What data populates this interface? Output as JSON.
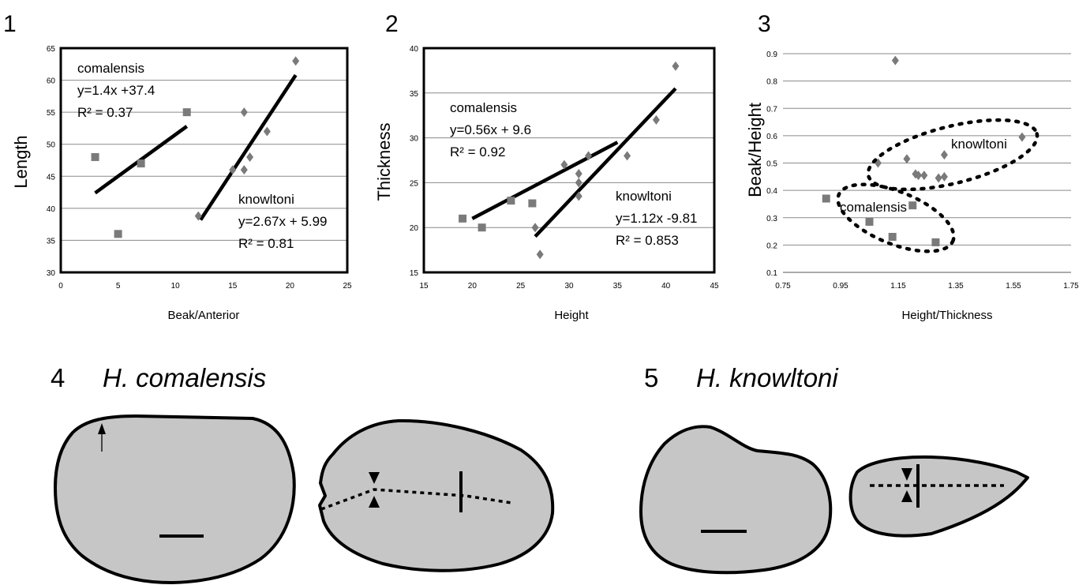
{
  "chart_data": [
    {
      "type": "scatter",
      "panel": "1",
      "xlabel": "Beak/Anterior",
      "ylabel": "Length",
      "xlim": [
        0,
        25
      ],
      "ylim": [
        30,
        65
      ],
      "xticks": [
        "0",
        "5",
        "10",
        "15",
        "20",
        "25"
      ],
      "yticks": [
        "30",
        "35",
        "40",
        "45",
        "50",
        "55",
        "60",
        "65"
      ],
      "grid": true,
      "series": [
        {
          "marker": "square",
          "points": [
            [
              3,
              48
            ],
            [
              5,
              36
            ],
            [
              7,
              47
            ],
            [
              11,
              55
            ]
          ]
        },
        {
          "marker": "diamond",
          "points": [
            [
              12,
              38.8
            ],
            [
              15,
              46
            ],
            [
              16,
              46
            ],
            [
              16,
              55
            ],
            [
              16.5,
              48
            ],
            [
              18,
              52
            ],
            [
              20.5,
              63
            ]
          ]
        }
      ],
      "trendlines": [
        {
          "x": [
            3,
            11
          ],
          "y": [
            42.4,
            52.8
          ]
        },
        {
          "x": [
            12.2,
            20.5
          ],
          "y": [
            38.2,
            60.8
          ]
        }
      ],
      "annotations": [
        {
          "lines": [
            "comalensis",
            "y=1.4x +37.4",
            "R² = 0.37"
          ]
        },
        {
          "lines": [
            "knowltoni",
            "y=2.67x + 5.99",
            "R² = 0.81"
          ]
        }
      ]
    },
    {
      "type": "scatter",
      "panel": "2",
      "xlabel": "Height",
      "ylabel": "Thickness",
      "xlim": [
        15,
        45
      ],
      "ylim": [
        15,
        40
      ],
      "xticks": [
        "15",
        "20",
        "25",
        "30",
        "35",
        "40",
        "45"
      ],
      "yticks": [
        "15",
        "20",
        "25",
        "30",
        "35",
        "40"
      ],
      "grid": true,
      "series": [
        {
          "marker": "square",
          "points": [
            [
              19,
              21
            ],
            [
              21,
              20
            ],
            [
              24,
              23
            ],
            [
              26.2,
              22.7
            ]
          ]
        },
        {
          "marker": "diamond",
          "points": [
            [
              26.5,
              20
            ],
            [
              27,
              17
            ],
            [
              29.5,
              27
            ],
            [
              31,
              26
            ],
            [
              31,
              25
            ],
            [
              31,
              23.5
            ],
            [
              32,
              28
            ],
            [
              36,
              28
            ],
            [
              39,
              32
            ],
            [
              41,
              38
            ]
          ]
        }
      ],
      "trendlines": [
        {
          "x": [
            20,
            35
          ],
          "y": [
            21,
            29.5
          ]
        },
        {
          "x": [
            26.5,
            41
          ],
          "y": [
            19,
            35.5
          ]
        }
      ],
      "annotations": [
        {
          "lines": [
            "comalensis",
            "y=0.56x + 9.6",
            "R² = 0.92"
          ]
        },
        {
          "lines": [
            "knowltoni",
            "y=1.12x -9.81",
            "R² = 0.853"
          ]
        }
      ]
    },
    {
      "type": "scatter",
      "panel": "3",
      "xlabel": "Height/Thickness",
      "ylabel": "Beak/Height",
      "xlim": [
        0.75,
        1.75
      ],
      "ylim": [
        0.1,
        0.9
      ],
      "xticks": [
        "0.75",
        "0.95",
        "1.15",
        "1.35",
        "1.55",
        "1.75"
      ],
      "yticks": [
        "0.1",
        "0.2",
        "0.3",
        "0.4",
        "0.5",
        "0.6",
        "0.7",
        "0.8",
        "0.9"
      ],
      "grid": true,
      "series": [
        {
          "marker": "square",
          "points": [
            [
              0.9,
              0.37
            ],
            [
              1.05,
              0.285
            ],
            [
              1.13,
              0.23
            ],
            [
              1.2,
              0.345
            ],
            [
              1.28,
              0.21
            ]
          ]
        },
        {
          "marker": "diamond",
          "points": [
            [
              1.14,
              0.875
            ],
            [
              1.08,
              0.5
            ],
            [
              1.18,
              0.515
            ],
            [
              1.21,
              0.46
            ],
            [
              1.22,
              0.455
            ],
            [
              1.24,
              0.455
            ],
            [
              1.29,
              0.445
            ],
            [
              1.31,
              0.45
            ],
            [
              1.31,
              0.53
            ],
            [
              1.58,
              0.595
            ]
          ]
        }
      ],
      "annotations": [
        {
          "lines": [
            "knowltoni"
          ]
        },
        {
          "lines": [
            "comalensis"
          ]
        }
      ]
    }
  ],
  "figures": {
    "panel4": {
      "number": "4",
      "title": "H. comalensis"
    },
    "panel5": {
      "number": "5",
      "title": "H. knowltoni"
    }
  },
  "colors": {
    "marker": "#7a7a7a",
    "shell_fill": "#c6c6c6",
    "grid": "#8a8a8a"
  }
}
